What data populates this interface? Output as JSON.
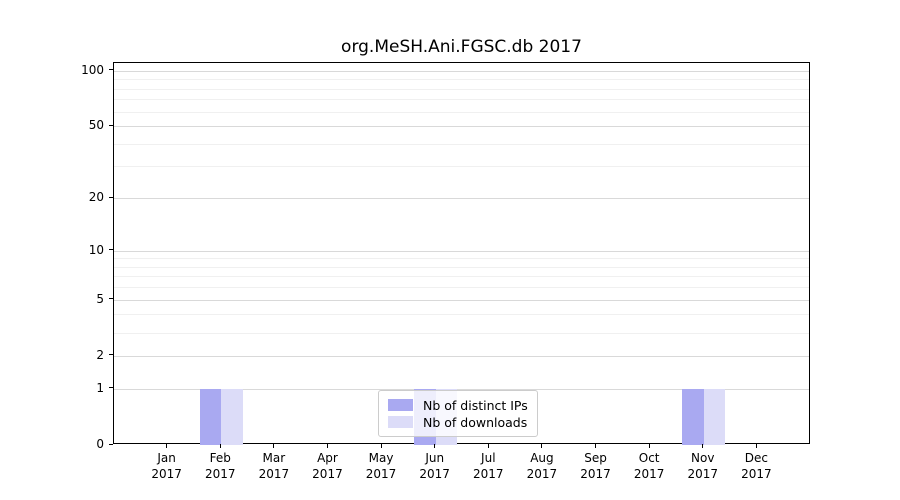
{
  "chart_data": {
    "type": "bar",
    "title": "org.MeSH.Ani.FGSC.db 2017",
    "categories": [
      "Jan",
      "Feb",
      "Mar",
      "Apr",
      "May",
      "Jun",
      "Jul",
      "Aug",
      "Sep",
      "Oct",
      "Nov",
      "Dec"
    ],
    "year_label": "2017",
    "series": [
      {
        "name": "Nb of distinct IPs",
        "color": "#a9a9f1",
        "values": [
          0,
          1,
          0,
          0,
          0,
          1,
          0,
          0,
          0,
          0,
          1,
          0
        ]
      },
      {
        "name": "Nb of downloads",
        "color": "#dcdcf8",
        "values": [
          0,
          1,
          0,
          0,
          0,
          1,
          0,
          0,
          0,
          0,
          1,
          0
        ]
      }
    ],
    "yscale": "log1p",
    "ylim": [
      0,
      110
    ],
    "y_ticks": [
      0,
      1,
      2,
      5,
      10,
      20,
      50,
      100
    ],
    "y_minor_ticks": [
      3,
      4,
      6,
      7,
      8,
      9,
      30,
      40,
      60,
      70,
      80,
      90
    ],
    "grid": true,
    "legend_position": "lower center",
    "colors": {
      "grid_major": "#d9d9d9",
      "grid_minor": "#f0f0f0",
      "spine": "#000000",
      "text": "#000000"
    }
  }
}
